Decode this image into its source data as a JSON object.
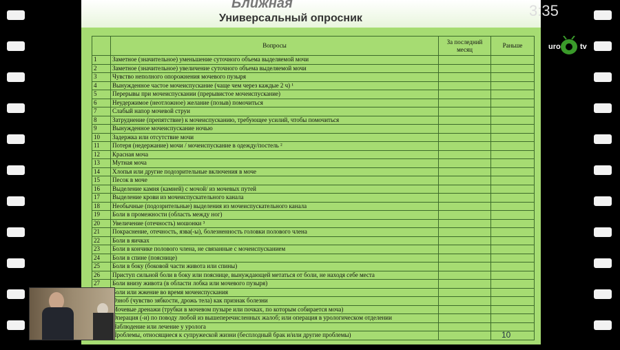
{
  "header": {
    "partial_title": "Ближная",
    "title": "Универсальный опросник",
    "timer": "3:35",
    "logo_left": "uro",
    "logo_right": "tv"
  },
  "table": {
    "columns": [
      "Вопросы",
      "За последний месяц",
      "Раньше"
    ],
    "rows": [
      {
        "num": "1",
        "text": "Заметное (значительное) уменьшение суточного объема выделяемой мочи"
      },
      {
        "num": "2",
        "text": "Заметное (значительное) увеличение суточного объема выделяемой мочи"
      },
      {
        "num": "3",
        "text": "Чувство неполного опорожнения мочевого пузыря"
      },
      {
        "num": "4",
        "text": "Вынужденное частое мочеиспускание (чаще чем через каждые 2 ч) ¹"
      },
      {
        "num": "5",
        "text": "Перерывы при мочеиспускании (прерывистое мочеиспускание)"
      },
      {
        "num": "6",
        "text": "Неудержимое (неотложное) желание (позыв) помочиться"
      },
      {
        "num": "7",
        "text": "Слабый напор мочевой струи"
      },
      {
        "num": "8",
        "text": "Затруднение (препятствие) к мочеиспусканию, требующее усилий, чтобы помочиться"
      },
      {
        "num": "9",
        "text": "Вынужденное мочеиспускание ночью"
      },
      {
        "num": "10",
        "text": "Задержка или отсутствие мочи"
      },
      {
        "num": "11",
        "text": "Потеря (недержание) мочи / мочеиспускание в одежду/постель ²"
      },
      {
        "num": "12",
        "text": "Красная моча"
      },
      {
        "num": "13",
        "text": "Мутная моча"
      },
      {
        "num": "14",
        "text": "Хлопья или другие подозрительные включения в моче"
      },
      {
        "num": "15",
        "text": "Песок в моче"
      },
      {
        "num": "16",
        "text": "Выделение камня (камней) с мочой/ из мочевых путей"
      },
      {
        "num": "17",
        "text": "Выделение крови из мочеиспускательного канала"
      },
      {
        "num": "18",
        "text": "Необычные (подозрительные) выделения из мочеиспускательного канала"
      },
      {
        "num": "19",
        "text": "Боли в промежности (область между ног)"
      },
      {
        "num": "20",
        "text": "Увеличение (отечность) мошонки ³"
      },
      {
        "num": "21",
        "text": "Покраснение, отечность, язва(-ы), болезненность головки полового члена"
      },
      {
        "num": "22",
        "text": "Боли в яичках"
      },
      {
        "num": "23",
        "text": "Боли в кончике полового члена, не связанные с мочеиспусканием"
      },
      {
        "num": "24",
        "text": "Боли в спине (пояснице)"
      },
      {
        "num": "25",
        "text": "Боли в боку (боковой части живота или спины)"
      },
      {
        "num": "26",
        "text": "Приступ сильной боли в боку или пояснице, вынуждающей метаться от боли, не находя себе места"
      },
      {
        "num": "27",
        "text": "Боли внизу живота (в области лобка или мочевого пузыря)"
      },
      {
        "text": "Боли или жжение во время мочеиспускания"
      },
      {
        "text": "Озноб (чувство зябкости, дрожь тела) как признак болезни"
      },
      {
        "text": "Мочевые дренажи (трубки в мочевом пузыре или почках, по которым собирается моча)"
      },
      {
        "text": "Операция (-и) по поводу любой из вышеперечисленных жалоб; или операция в урологическом отделении"
      },
      {
        "text": "Наблюдение или лечение у уролога"
      },
      {
        "text": "Проблемы, относящиеся к супружеской жизни (бесплодный брак и/или другие проблемы)"
      }
    ]
  },
  "footer": {
    "page": "10"
  }
}
